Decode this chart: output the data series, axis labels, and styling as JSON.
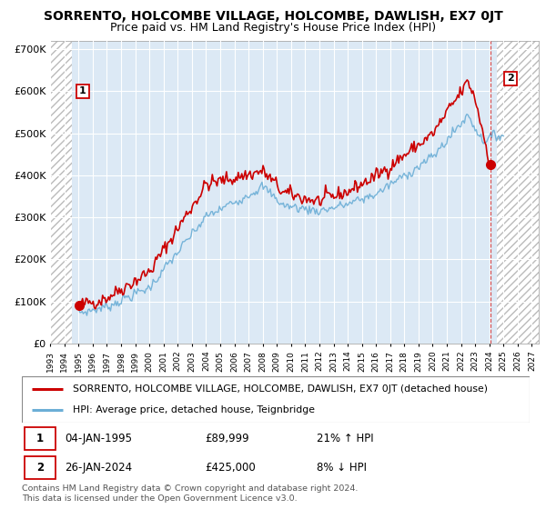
{
  "title": "SORRENTO, HOLCOMBE VILLAGE, HOLCOMBE, DAWLISH, EX7 0JT",
  "subtitle": "Price paid vs. HM Land Registry's House Price Index (HPI)",
  "ylim": [
    0,
    720000
  ],
  "yticks": [
    0,
    100000,
    200000,
    300000,
    400000,
    500000,
    600000,
    700000
  ],
  "ytick_labels": [
    "£0",
    "£100K",
    "£200K",
    "£300K",
    "£400K",
    "£500K",
    "£600K",
    "£700K"
  ],
  "xlim_start": 1993.0,
  "xlim_end": 2027.5,
  "hpi_color": "#6baed6",
  "price_color": "#cc0000",
  "marker_color": "#cc0000",
  "background_color": "#dce9f5",
  "sale1_x": 1995.03,
  "sale1_y": 89999,
  "sale2_x": 2024.07,
  "sale2_y": 425000,
  "legend_label1": "SORRENTO, HOLCOMBE VILLAGE, HOLCOMBE, DAWLISH, EX7 0JT (detached house)",
  "legend_label2": "HPI: Average price, detached house, Teignbridge",
  "note1_date": "04-JAN-1995",
  "note1_price": "£89,999",
  "note1_hpi": "21% ↑ HPI",
  "note2_date": "26-JAN-2024",
  "note2_price": "£425,000",
  "note2_hpi": "8% ↓ HPI",
  "footer": "Contains HM Land Registry data © Crown copyright and database right 2024.\nThis data is licensed under the Open Government Licence v3.0.",
  "title_fontsize": 10,
  "subtitle_fontsize": 9,
  "tick_fontsize": 8,
  "note_fontsize": 8
}
